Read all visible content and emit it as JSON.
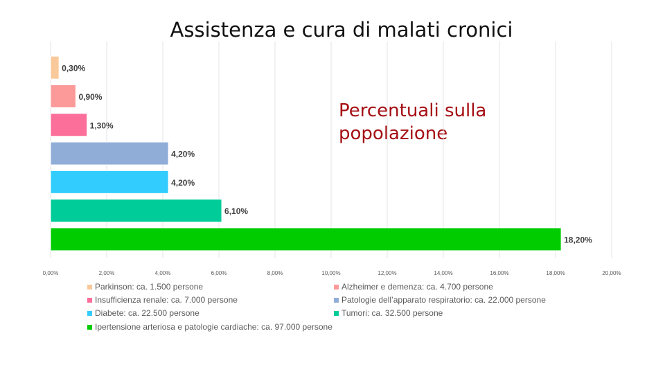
{
  "title": "Assistenza e cura di malati cronici",
  "subtitle": "Percentuali sulla popolazione",
  "chart_data": {
    "type": "bar",
    "orientation": "horizontal",
    "categories": [
      "Parkinson: ca. 1.500 persone",
      "Alzheimer e demenza: ca. 4.700 persone",
      "Insufficienza renale: ca. 7.000 persone",
      "Patologie dell’apparato respiratorio: ca. 22.000 persone",
      "Diabete: ca. 22.500 persone",
      "Tumori: ca. 32.500 persone",
      "Ipertensione arteriosa e patologie cardiache: ca. 97.000 persone"
    ],
    "values": [
      0.3,
      0.9,
      1.3,
      4.2,
      4.2,
      6.1,
      18.2
    ],
    "value_labels": [
      "0,30%",
      "0,90%",
      "1,30%",
      "4,20%",
      "4,20%",
      "6,10%",
      "18,20%"
    ],
    "colors": [
      "#f9c99b",
      "#fb9a99",
      "#fb6f9a",
      "#90add8",
      "#33ccff",
      "#00cc99",
      "#00cc00"
    ],
    "xlim": [
      0,
      20
    ],
    "x_ticks": [
      "0,00%",
      "2,00%",
      "4,00%",
      "6,00%",
      "8,00%",
      "10,00%",
      "12,00%",
      "14,00%",
      "16,00%",
      "18,00%",
      "20,00%"
    ],
    "grid": true,
    "legend": "bottom"
  }
}
